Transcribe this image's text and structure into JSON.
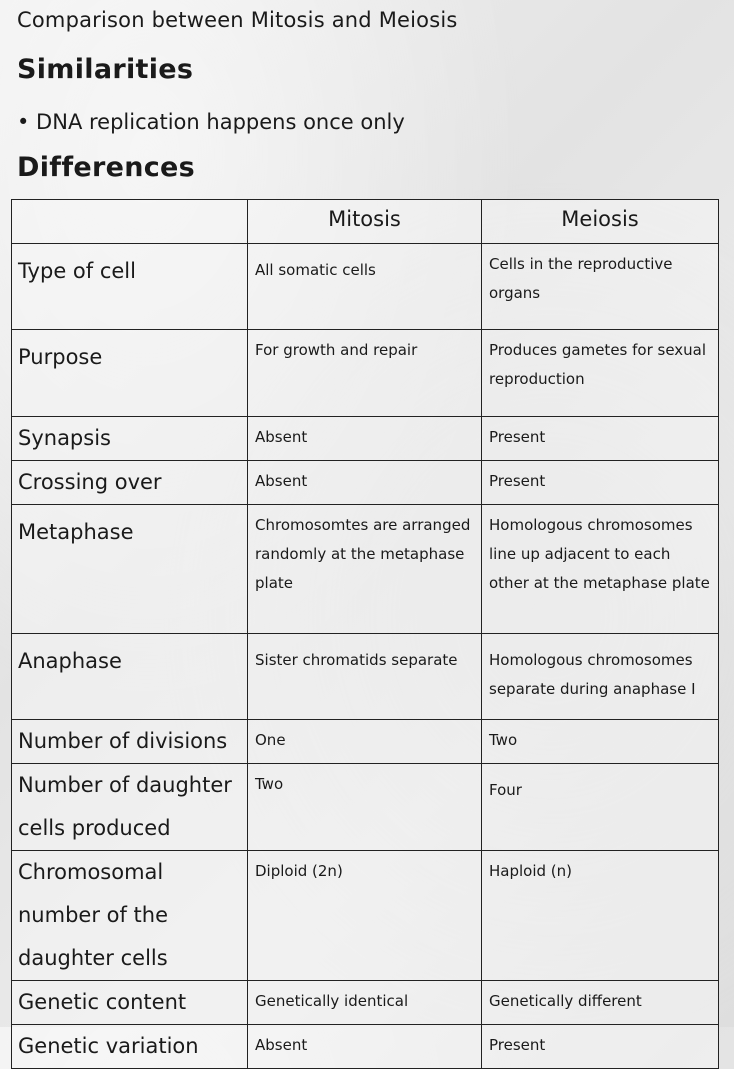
{
  "title": "Comparison between Mitosis and Meiosis",
  "similarities": {
    "heading": "Similarities",
    "items": [
      "• DNA replication happens once only"
    ]
  },
  "differences": {
    "heading": "Differences",
    "columns": [
      "",
      "Mitosis",
      "Meiosis"
    ],
    "rows": [
      {
        "feature": "Type of cell",
        "mitosis": "All somatic cells",
        "meiosis": "Cells in the reproductive organs"
      },
      {
        "feature": "Purpose",
        "mitosis": "For growth and repair",
        "meiosis": "Produces gametes for sexual reproduction"
      },
      {
        "feature": "Synapsis",
        "mitosis": "Absent",
        "meiosis": "Present"
      },
      {
        "feature": "Crossing over",
        "mitosis": "Absent",
        "meiosis": "Present"
      },
      {
        "feature": "Metaphase",
        "mitosis": "Chromosomtes are arranged randomly at the metaphase plate",
        "meiosis": "Homologous chromosomes line up adjacent to each other at the metaphase plate"
      },
      {
        "feature": "Anaphase",
        "mitosis": "Sister chromatids separate",
        "meiosis": "Homologous chromosomes separate during anaphase I"
      },
      {
        "feature": "Number of divisions",
        "mitosis": "One",
        "meiosis": "Two"
      },
      {
        "feature": "Number of daughter cells produced",
        "mitosis": "Two",
        "meiosis": "Four"
      },
      {
        "feature": "Chromosomal number of the daughter cells",
        "mitosis": "Diploid (2n)",
        "meiosis": "Haploid (n)"
      },
      {
        "feature": "Genetic content",
        "mitosis": "Genetically identical",
        "meiosis": "Genetically different"
      },
      {
        "feature": "Genetic variation",
        "mitosis": "Absent",
        "meiosis": "Present"
      }
    ]
  }
}
